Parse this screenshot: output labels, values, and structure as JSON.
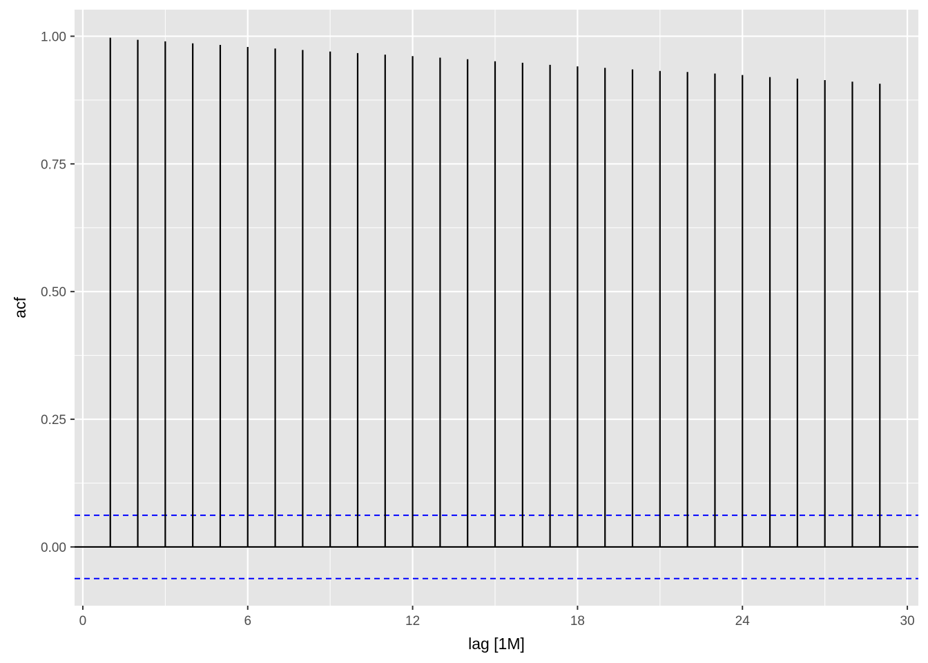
{
  "chart_data": {
    "type": "bar",
    "style": "acf-lollipop",
    "xlabel": "lag [1M]",
    "ylabel": "acf",
    "xlim": [
      -0.3,
      30.4
    ],
    "ylim": [
      -0.115,
      1.052
    ],
    "x_ticks": [
      0,
      6,
      12,
      18,
      24,
      30
    ],
    "x_tick_labels": [
      "0",
      "6",
      "12",
      "18",
      "24",
      "30"
    ],
    "y_ticks": [
      0.0,
      0.25,
      0.5,
      0.75,
      1.0
    ],
    "y_tick_labels": [
      "0.00",
      "0.25",
      "0.50",
      "0.75",
      "1.00"
    ],
    "lags": [
      1,
      2,
      3,
      4,
      5,
      6,
      7,
      8,
      9,
      10,
      11,
      12,
      13,
      14,
      15,
      16,
      17,
      18,
      19,
      20,
      21,
      22,
      23,
      24,
      25,
      26,
      27,
      28,
      29
    ],
    "values": [
      0.997,
      0.993,
      0.99,
      0.986,
      0.983,
      0.979,
      0.976,
      0.973,
      0.97,
      0.967,
      0.964,
      0.961,
      0.958,
      0.955,
      0.951,
      0.948,
      0.944,
      0.941,
      0.938,
      0.935,
      0.932,
      0.93,
      0.927,
      0.924,
      0.92,
      0.917,
      0.914,
      0.911,
      0.907
    ],
    "confidence_bound": 0.062,
    "grid": true,
    "colors": {
      "panel_background": "#e5e5e5",
      "grid_major": "#ffffff",
      "grid_minor": "#f2f2f2",
      "stem": "#000000",
      "zero_line": "#000000",
      "confidence_line": "#0000ff"
    }
  }
}
